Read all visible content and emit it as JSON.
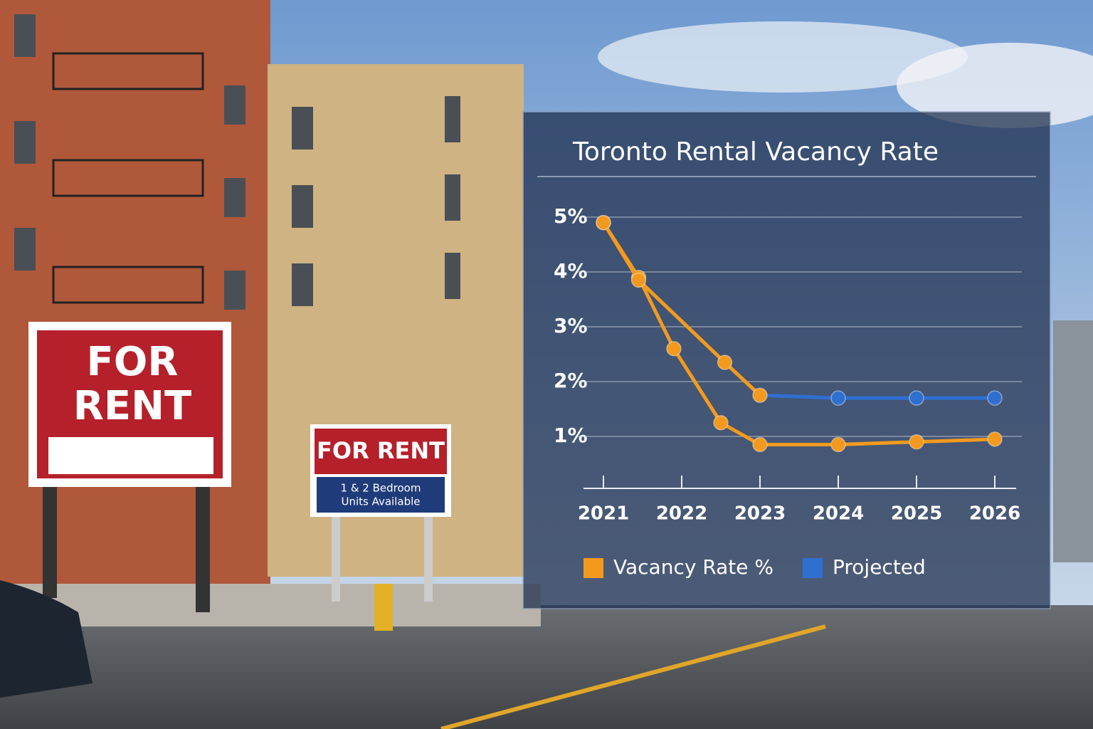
{
  "scene": {
    "signs": [
      {
        "lines": [
          "FOR",
          "RENT"
        ]
      },
      {
        "lines": [
          "FOR RENT",
          "1 & 2 Bedroom",
          "Units Available"
        ]
      }
    ]
  },
  "chart_data": {
    "type": "line",
    "title": "Toronto Rental Vacancy Rate",
    "xlim": [
      2021,
      2026
    ],
    "xticks": [
      2021,
      2022,
      2023,
      2024,
      2025,
      2026
    ],
    "ylim": [
      0,
      5
    ],
    "yticks": [
      {
        "value": 1,
        "label": "1%"
      },
      {
        "value": 2,
        "label": "2%"
      },
      {
        "value": 3,
        "label": "3%"
      },
      {
        "value": 4,
        "label": "4%"
      },
      {
        "value": 5,
        "label": "5%"
      }
    ],
    "grid": true,
    "series": [
      {
        "name": "Vacancy Rate %",
        "color": "#f39a1e",
        "x": [
          2021,
          2021.45,
          2021.9,
          2022.5,
          2023,
          2024,
          2025,
          2026
        ],
        "values": [
          4.9,
          3.9,
          2.6,
          1.25,
          0.85,
          0.85,
          0.9,
          0.95
        ]
      },
      {
        "name": "Projected",
        "color": "#2f6fd0",
        "colors": [
          "#f39a1e",
          "#f39a1e",
          "#f39a1e",
          "#f39a1e",
          "#2f6fd0",
          "#2f6fd0",
          "#2f6fd0"
        ],
        "x": [
          2021,
          2021.45,
          2022.55,
          2023,
          2024,
          2025,
          2026
        ],
        "values": [
          4.9,
          3.85,
          2.35,
          1.75,
          1.7,
          1.7,
          1.7
        ]
      }
    ]
  }
}
